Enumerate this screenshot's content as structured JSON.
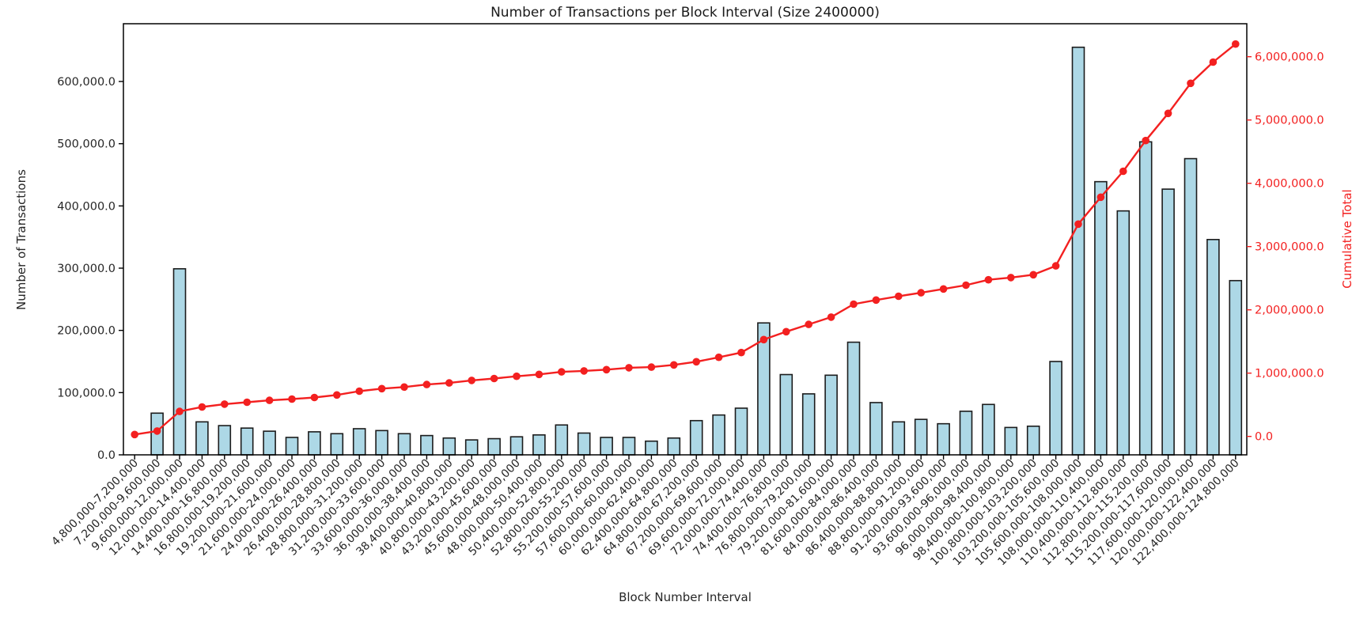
{
  "figure": {
    "background": "#ffffff",
    "text_color": "#262626",
    "accent_red": "#f32020",
    "bar_fill": "#add8e6",
    "bar_edge": "#1c1c1c"
  },
  "chart_data": {
    "type": "bar",
    "title": "Number of Transactions per Block Interval (Size 2400000)",
    "xlabel": "Block Number Interval",
    "ylabel_left": "Number of Transactions",
    "ylabel_right": "Cumulative Total",
    "grid": false,
    "legend_position": "none",
    "categories": [
      "4,800,000-7,200,000",
      "7,200,000-9,600,000",
      "9,600,000-12,000,000",
      "12,000,000-14,400,000",
      "14,400,000-16,800,000",
      "16,800,000-19,200,000",
      "19,200,000-21,600,000",
      "21,600,000-24,000,000",
      "24,000,000-26,400,000",
      "26,400,000-28,800,000",
      "28,800,000-31,200,000",
      "31,200,000-33,600,000",
      "33,600,000-36,000,000",
      "36,000,000-38,400,000",
      "38,400,000-40,800,000",
      "40,800,000-43,200,000",
      "43,200,000-45,600,000",
      "45,600,000-48,000,000",
      "48,000,000-50,400,000",
      "50,400,000-52,800,000",
      "52,800,000-55,200,000",
      "55,200,000-57,600,000",
      "57,600,000-60,000,000",
      "60,000,000-62,400,000",
      "62,400,000-64,800,000",
      "64,800,000-67,200,000",
      "67,200,000-69,600,000",
      "69,600,000-72,000,000",
      "72,000,000-74,400,000",
      "74,400,000-76,800,000",
      "76,800,000-79,200,000",
      "79,200,000-81,600,000",
      "81,600,000-84,000,000",
      "84,000,000-86,400,000",
      "86,400,000-88,800,000",
      "88,800,000-91,200,000",
      "91,200,000-93,600,000",
      "93,600,000-96,000,000",
      "96,000,000-98,400,000",
      "98,400,000-100,800,000",
      "100,800,000-103,200,000",
      "103,200,000-105,600,000",
      "105,600,000-108,000,000",
      "108,000,000-110,400,000",
      "110,400,000-112,800,000",
      "112,800,000-115,200,000",
      "115,200,000-117,600,000",
      "117,600,000-120,000,000",
      "120,000,000-122,400,000",
      "122,400,000-124,800,000"
    ],
    "series": [
      {
        "name": "Number of Transactions",
        "type": "bar",
        "axis": "left",
        "color": "#add8e6",
        "edge_color": "#1c1c1c",
        "values": [
          0,
          67000,
          299000,
          53000,
          47000,
          43000,
          38000,
          28000,
          37000,
          34000,
          42000,
          39000,
          34000,
          31000,
          27000,
          24000,
          26000,
          29000,
          32000,
          48000,
          35000,
          28000,
          28000,
          22000,
          27000,
          55000,
          64000,
          75000,
          212000,
          129000,
          98000,
          128000,
          181000,
          84000,
          53000,
          57000,
          50000,
          70000,
          81000,
          44000,
          46000,
          150000,
          655000,
          439000,
          392000,
          503000,
          427000,
          476000,
          346000,
          280000
        ]
      },
      {
        "name": "Cumulative Total",
        "type": "line",
        "axis": "right",
        "color": "#f32020",
        "marker": "circle",
        "values": [
          30000,
          85000,
          395000,
          465000,
          510000,
          540000,
          570000,
          590000,
          615000,
          655000,
          715000,
          755000,
          780000,
          820000,
          845000,
          885000,
          915000,
          950000,
          980000,
          1020000,
          1035000,
          1055000,
          1085000,
          1095000,
          1130000,
          1180000,
          1250000,
          1325000,
          1530000,
          1655000,
          1770000,
          1885000,
          2090000,
          2155000,
          2215000,
          2270000,
          2330000,
          2390000,
          2475000,
          2510000,
          2555000,
          2695000,
          3355000,
          3780000,
          4190000,
          4675000,
          5105000,
          5580000,
          5915000,
          6200000
        ]
      }
    ],
    "left_axis": {
      "range": [
        0,
        692800
      ],
      "ticks": [
        0,
        100000,
        200000,
        300000,
        400000,
        500000,
        600000
      ],
      "tick_labels": [
        "0.0",
        "100,000.0",
        "200,000.0",
        "300,000.0",
        "400,000.0",
        "500,000.0",
        "600,000.0"
      ]
    },
    "right_axis": {
      "range": [
        -291250,
        6521250
      ],
      "ticks": [
        0,
        1000000,
        2000000,
        3000000,
        4000000,
        5000000,
        6000000
      ],
      "tick_labels": [
        "0.0",
        "1,000,000.0",
        "2,000,000.0",
        "3,000,000.0",
        "4,000,000.0",
        "5,000,000.0",
        "6,000,000.0"
      ],
      "color": "#f32020"
    }
  }
}
